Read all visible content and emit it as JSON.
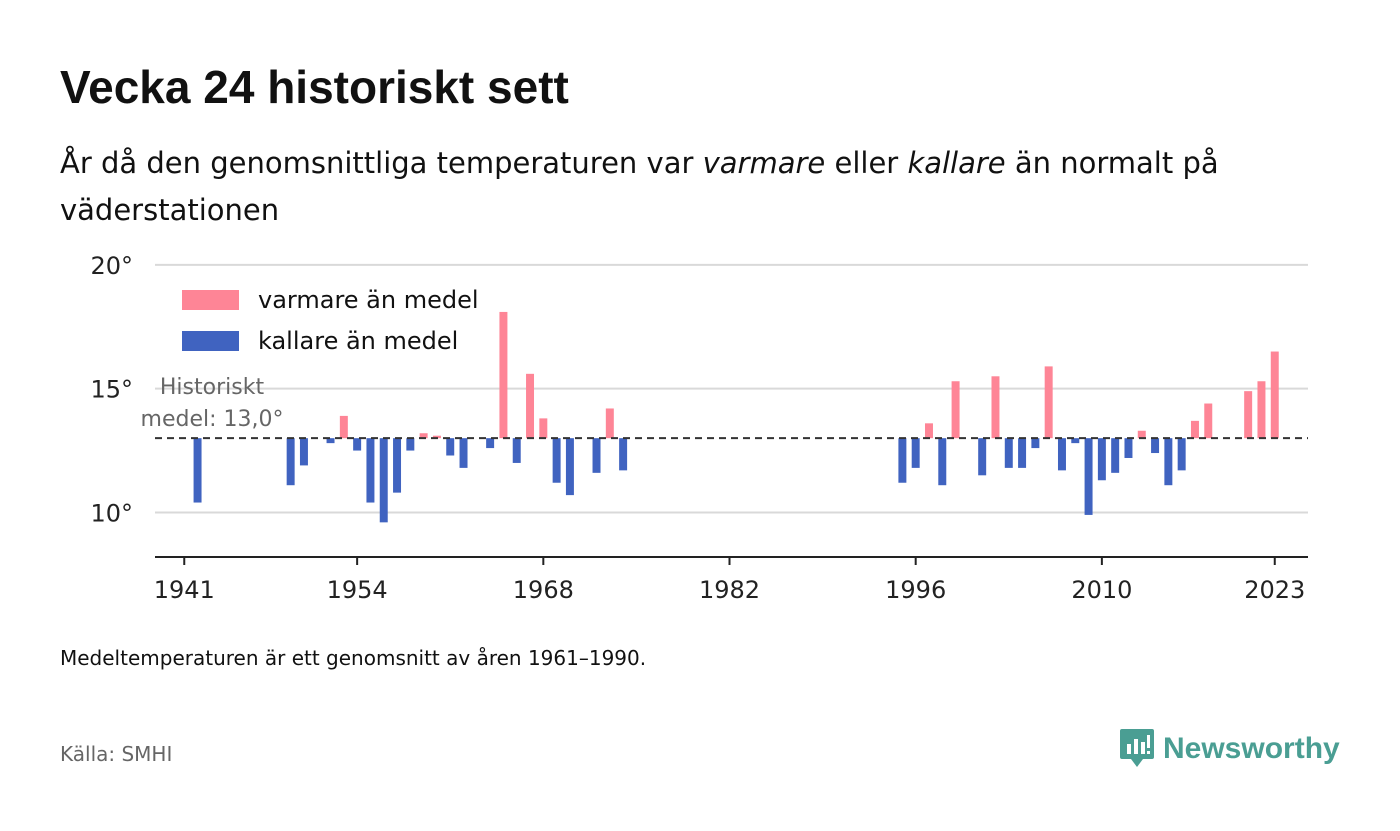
{
  "header": {
    "title": "Vecka 24 historiskt sett",
    "subtitle_part1": "År då den genomsnittliga temperaturen var ",
    "subtitle_warm": "varmare",
    "subtitle_part2": " eller ",
    "subtitle_cold": "kallare",
    "subtitle_part3": " än normalt på väderstationen"
  },
  "footer": {
    "note": "Medeltemperaturen är ett genomsnitt av åren 1961–1990.",
    "source": "Källa: SMHI",
    "brand": "Newsworthy"
  },
  "colors": {
    "warm": "#fe8596",
    "cold": "#4063c0",
    "brand": "#4a9e93"
  },
  "chart_data": {
    "type": "bar",
    "baseline": 13.0,
    "baseline_label_line1": "Historiskt",
    "baseline_label_line2": "medel: 13,0°",
    "ylim": [
      8.2,
      20.4
    ],
    "xlim": [
      1938.8,
      2025.5
    ],
    "yticks": [
      10,
      15,
      20
    ],
    "ytick_labels": [
      "10°",
      "15°",
      "20°"
    ],
    "xticks": [
      1941,
      1954,
      1968,
      1982,
      1996,
      2010,
      2023
    ],
    "xtick_labels": [
      "1941",
      "1954",
      "1968",
      "1982",
      "1996",
      "2010",
      "2023"
    ],
    "legend": {
      "position": "top-left",
      "warm_label": "varmare än medel",
      "cold_label": "kallare än medel"
    },
    "x": [
      1942,
      1949,
      1950,
      1951,
      1952,
      1953,
      1954,
      1955,
      1956,
      1957,
      1958,
      1959,
      1960,
      1961,
      1962,
      1963,
      1964,
      1965,
      1966,
      1967,
      1968,
      1969,
      1970,
      1971,
      1972,
      1973,
      1974,
      1976,
      1995,
      1996,
      1997,
      1998,
      1999,
      2001,
      2002,
      2003,
      2004,
      2005,
      2006,
      2007,
      2008,
      2009,
      2010,
      2011,
      2012,
      2013,
      2014,
      2015,
      2016,
      2017,
      2018,
      2019,
      2021,
      2022,
      2023
    ],
    "values": [
      10.4,
      11.1,
      11.9,
      13.0,
      12.8,
      13.9,
      12.5,
      10.4,
      9.6,
      10.8,
      12.5,
      13.2,
      13.1,
      12.3,
      11.8,
      13.0,
      12.6,
      18.1,
      12.0,
      15.6,
      13.8,
      11.2,
      10.7,
      13.0,
      11.6,
      14.2,
      11.7,
      13.0,
      11.2,
      11.8,
      13.6,
      11.1,
      15.3,
      11.5,
      15.5,
      11.8,
      11.8,
      12.6,
      15.9,
      11.7,
      12.8,
      9.9,
      11.3,
      11.6,
      12.2,
      13.3,
      12.4,
      11.1,
      11.7,
      13.7,
      14.4,
      13.0,
      14.9,
      15.3,
      16.5
    ]
  }
}
